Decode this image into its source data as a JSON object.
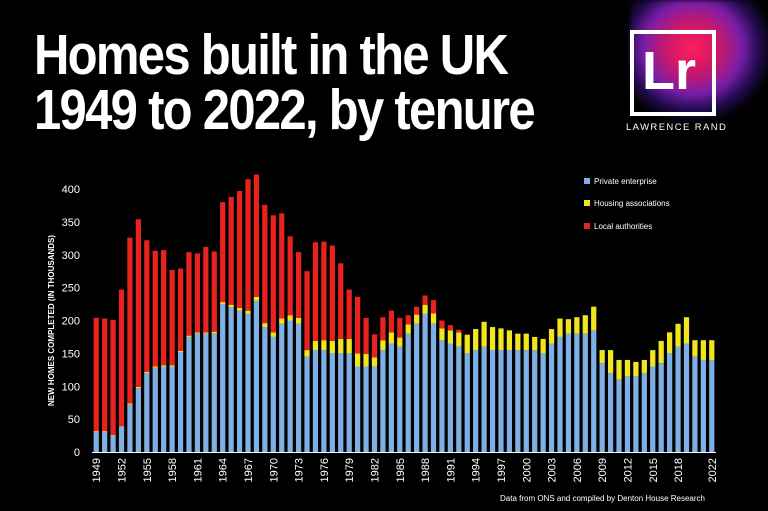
{
  "header": {
    "title_line1": "Homes built in the UK",
    "title_line2": "1949 to 2022, by tenure"
  },
  "logo": {
    "mark": "Lr",
    "name": "LAWRENCE RAND"
  },
  "source": "Data from ONS and compiled by Denton House Research",
  "colors": {
    "private": "#7eb0e6",
    "housing_associations": "#f2e51e",
    "local_authorities": "#e8221e"
  },
  "chart_data": {
    "type": "bar",
    "stacked": true,
    "ylabel": "NEW HOMES COMPLETED (IN THOUSANDS)",
    "xlabel": "",
    "ylim": [
      0,
      400
    ],
    "yticks": [
      0,
      50,
      100,
      150,
      200,
      250,
      300,
      350,
      400
    ],
    "xtick_labels": [
      "1949",
      "1952",
      "1955",
      "1958",
      "1961",
      "1964",
      "1967",
      "1970",
      "1973",
      "1976",
      "1979",
      "1982",
      "1985",
      "1988",
      "1991",
      "1994",
      "1997",
      "2000",
      "2003",
      "2006",
      "2009",
      "2012",
      "2015",
      "2018",
      "2022"
    ],
    "legend_position": "top-right",
    "grid": false,
    "x": [
      1949,
      1950,
      1951,
      1952,
      1953,
      1954,
      1955,
      1956,
      1957,
      1958,
      1959,
      1960,
      1961,
      1962,
      1963,
      1964,
      1965,
      1966,
      1967,
      1968,
      1969,
      1970,
      1971,
      1972,
      1973,
      1974,
      1975,
      1976,
      1977,
      1978,
      1979,
      1980,
      1981,
      1982,
      1983,
      1984,
      1985,
      1986,
      1987,
      1988,
      1989,
      1990,
      1991,
      1992,
      1993,
      1994,
      1995,
      1996,
      1997,
      1998,
      1999,
      2000,
      2001,
      2002,
      2003,
      2004,
      2005,
      2006,
      2007,
      2008,
      2009,
      2010,
      2011,
      2012,
      2013,
      2014,
      2015,
      2016,
      2017,
      2018,
      2019,
      2020,
      2021,
      2022
    ],
    "series": [
      {
        "name": "Private enterprise",
        "values": [
          31,
          31,
          25,
          38,
          72,
          97,
          120,
          128,
          130,
          130,
          152,
          175,
          180,
          180,
          180,
          225,
          220,
          215,
          210,
          230,
          190,
          175,
          195,
          200,
          195,
          145,
          155,
          155,
          150,
          150,
          150,
          130,
          130,
          130,
          155,
          165,
          160,
          180,
          195,
          210,
          195,
          170,
          165,
          160,
          150,
          155,
          160,
          155,
          155,
          155,
          155,
          155,
          155,
          150,
          165,
          175,
          180,
          180,
          180,
          185,
          135,
          120,
          110,
          115,
          115,
          120,
          130,
          135,
          150,
          160,
          165,
          145,
          140,
          140
        ]
      },
      {
        "name": "Housing associations",
        "values": [
          1,
          1,
          1,
          1,
          2,
          2,
          2,
          2,
          2,
          2,
          2,
          2,
          2,
          2,
          3,
          3,
          4,
          4,
          5,
          6,
          6,
          7,
          8,
          8,
          9,
          10,
          14,
          15,
          19,
          22,
          22,
          20,
          19,
          14,
          15,
          17,
          14,
          14,
          14,
          14,
          16,
          18,
          20,
          22,
          28,
          32,
          38,
          35,
          33,
          30,
          25,
          25,
          20,
          22,
          22,
          28,
          22,
          25,
          28,
          36,
          20,
          35,
          30,
          25,
          22,
          20,
          25,
          34,
          32,
          35,
          40,
          25,
          30,
          30
        ]
      },
      {
        "name": "Local authorities",
        "values": [
          172,
          171,
          175,
          208,
          252,
          255,
          200,
          176,
          175,
          145,
          125,
          127,
          120,
          130,
          122,
          152,
          164,
          178,
          200,
          186,
          180,
          178,
          160,
          120,
          100,
          120,
          150,
          150,
          145,
          115,
          75,
          86,
          55,
          35,
          35,
          33,
          30,
          14,
          12,
          14,
          20,
          12,
          8,
          4,
          1,
          0,
          0,
          0,
          0,
          0,
          0,
          0,
          0,
          0,
          0,
          0,
          0,
          0,
          0,
          0,
          0,
          0,
          0,
          0,
          0,
          0,
          0,
          0,
          0,
          0,
          0,
          0,
          0,
          0
        ]
      }
    ]
  }
}
